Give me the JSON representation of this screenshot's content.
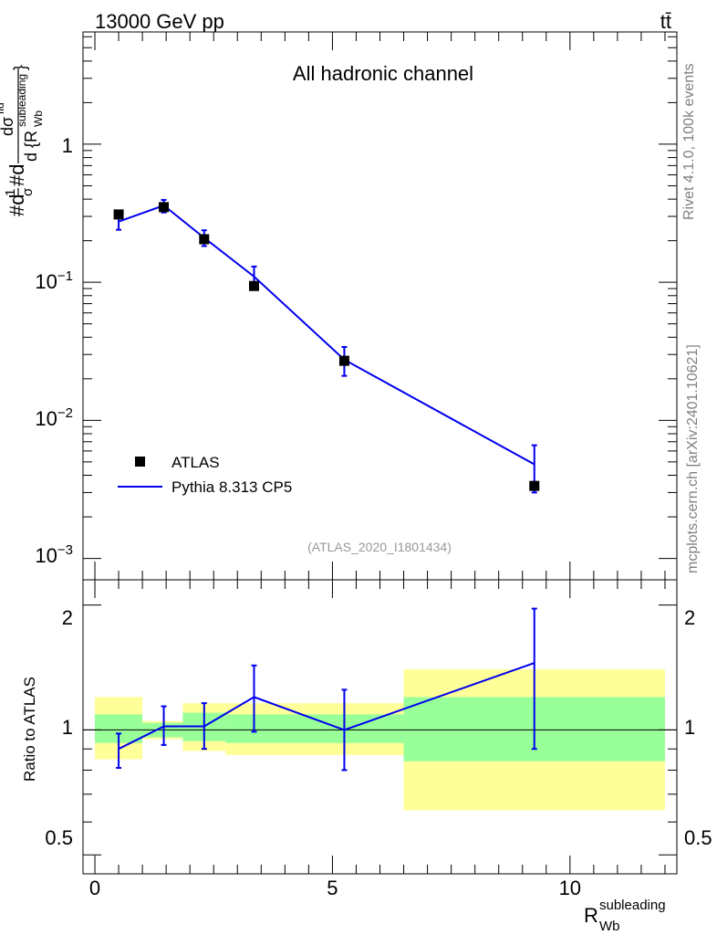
{
  "header": {
    "energy_label": "13000 GeV pp",
    "process_label": "tt̄"
  },
  "side_text": {
    "rivet": "Rivet 4.1.0,  100k events",
    "source": "mcplots.cern.ch [arXiv:2401.10621]"
  },
  "colors": {
    "data": "#000000",
    "mc": "#0000ee",
    "band_inner": "#99ff99",
    "band_outer": "#ffff99",
    "analysis_text": "#999999",
    "side_text": "#808080"
  },
  "chart_data": [
    {
      "type": "line",
      "panel": "main",
      "title": "All hadronic channel",
      "analysis_tag": "(ATLAS_2020_I1801434)",
      "ylabel": "#d 1/σ #d dσ^fid / d{R_Wb^subleading}",
      "ylabel_parts": {
        "a": "#d",
        "b": "1",
        "c": "σ",
        "d": "#d",
        "e": "dσ",
        "f": "fid",
        "g": "d {R",
        "h": "subleading",
        "i": "Wb",
        "j": "}"
      },
      "yscale": "log",
      "ylim": [
        0.0007,
        6.5
      ],
      "xlim": [
        -0.25,
        12.25
      ],
      "y_ticks": [
        {
          "value": 0.001,
          "base": "10",
          "exp": "−3"
        },
        {
          "value": 0.01,
          "base": "10",
          "exp": "−2"
        },
        {
          "value": 0.1,
          "base": "10",
          "exp": "−1"
        },
        {
          "value": 1,
          "base": "1",
          "exp": ""
        }
      ],
      "legend": {
        "position": "lower-left",
        "entries": [
          "ATLAS",
          "Pythia 8.313 CP5"
        ]
      },
      "series": [
        {
          "name": "ATLAS",
          "x": [
            0.5,
            1.45,
            2.3,
            3.35,
            5.25,
            9.25
          ],
          "y": [
            0.31,
            0.35,
            0.205,
            0.094,
            0.027,
            0.00335
          ]
        },
        {
          "name": "Pythia 8.313 CP5",
          "x": [
            0.5,
            1.45,
            2.3,
            3.35,
            5.25,
            9.25
          ],
          "y": [
            0.275,
            0.36,
            0.21,
            0.11,
            0.0275,
            0.0048
          ],
          "yerr_low": [
            0.24,
            0.32,
            0.183,
            0.093,
            0.021,
            0.003
          ],
          "yerr_high": [
            0.31,
            0.395,
            0.238,
            0.13,
            0.034,
            0.0066
          ]
        }
      ]
    },
    {
      "type": "line",
      "panel": "ratio",
      "ylabel": "Ratio to ATLAS",
      "xlabel": "R_Wb^subleading",
      "xlabel_parts": {
        "main": "R",
        "sup": "subleading",
        "sub": "Wb"
      },
      "yscale": "log",
      "ylim": [
        0.45,
        2.3
      ],
      "xlim": [
        -0.25,
        12.25
      ],
      "x_ticks": [
        0,
        5,
        10
      ],
      "y_ticks": [
        0.5,
        1,
        2
      ],
      "bands": [
        {
          "x_low": 0,
          "x_high": 1.0,
          "inner": [
            0.93,
            1.09
          ],
          "outer": [
            0.85,
            1.2
          ]
        },
        {
          "x_low": 1.0,
          "x_high": 1.85,
          "inner": [
            0.96,
            1.04
          ],
          "outer": [
            0.95,
            1.05
          ]
        },
        {
          "x_low": 1.85,
          "x_high": 2.75,
          "inner": [
            0.94,
            1.1
          ],
          "outer": [
            0.89,
            1.16
          ]
        },
        {
          "x_low": 2.75,
          "x_high": 6.5,
          "inner": [
            0.93,
            1.09
          ],
          "outer": [
            0.87,
            1.16
          ]
        },
        {
          "x_low": 6.5,
          "x_high": 12.0,
          "inner": [
            0.84,
            1.2
          ],
          "outer": [
            0.64,
            1.4
          ]
        }
      ],
      "series": [
        {
          "name": "Pythia 8.313 CP5",
          "x": [
            0.5,
            1.45,
            2.3,
            3.35,
            5.25,
            9.25
          ],
          "y": [
            0.9,
            1.02,
            1.02,
            1.2,
            1.0,
            1.45
          ],
          "yerr_low": [
            0.81,
            0.92,
            0.9,
            0.99,
            0.8,
            0.9
          ],
          "yerr_high": [
            0.98,
            1.14,
            1.16,
            1.43,
            1.25,
            1.96
          ]
        }
      ],
      "reference_line": 1
    }
  ]
}
